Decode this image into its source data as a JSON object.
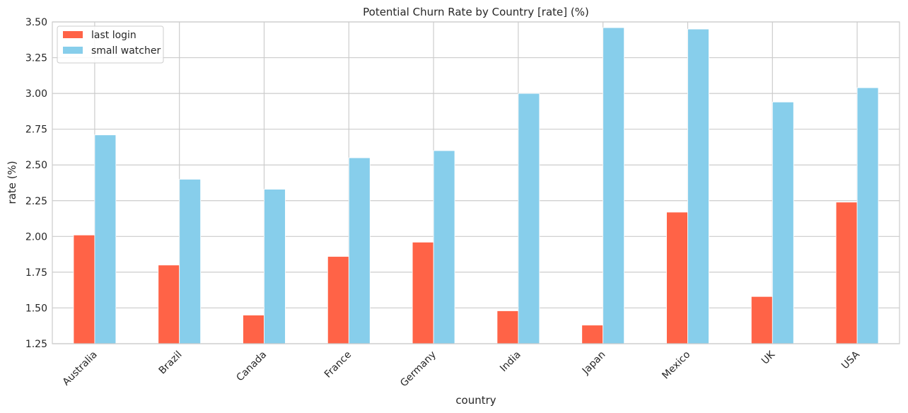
{
  "chart_data": {
    "type": "bar",
    "title": "Potential Churn Rate by Country [rate] (%)",
    "xlabel": "country",
    "ylabel": "rate (%)",
    "ylim": [
      1.25,
      3.5
    ],
    "yticks": [
      1.25,
      1.5,
      1.75,
      2.0,
      2.25,
      2.5,
      2.75,
      3.0,
      3.25,
      3.5
    ],
    "ytick_labels": [
      "1.25",
      "1.50",
      "1.75",
      "2.00",
      "2.25",
      "2.50",
      "2.75",
      "3.00",
      "3.25",
      "3.50"
    ],
    "grid": true,
    "legend_position": "top-left",
    "categories": [
      "Australia",
      "Brazil",
      "Canada",
      "France",
      "Germany",
      "India",
      "Japan",
      "Mexico",
      "UK",
      "USA"
    ],
    "series": [
      {
        "name": "last login",
        "color": "#ff6347",
        "values": [
          2.01,
          1.8,
          1.45,
          1.86,
          1.96,
          1.48,
          1.38,
          2.17,
          1.58,
          2.24
        ]
      },
      {
        "name": "small watcher",
        "color": "#87ceeb",
        "values": [
          2.71,
          2.4,
          2.33,
          2.55,
          2.6,
          3.0,
          3.46,
          3.45,
          2.94,
          3.04
        ]
      }
    ]
  }
}
